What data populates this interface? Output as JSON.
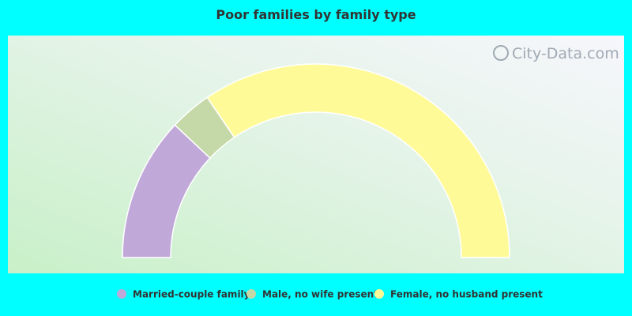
{
  "chart_data": {
    "type": "semi-donut",
    "title": "Poor families by family type",
    "watermark": "City-Data.com",
    "categories": [
      "Married-couple family",
      "Male, no wife present",
      "Female, no husband present"
    ],
    "values": [
      24,
      7,
      69
    ],
    "colors": [
      "#c0a8d8",
      "#c5d8a8",
      "#fffa98"
    ]
  }
}
